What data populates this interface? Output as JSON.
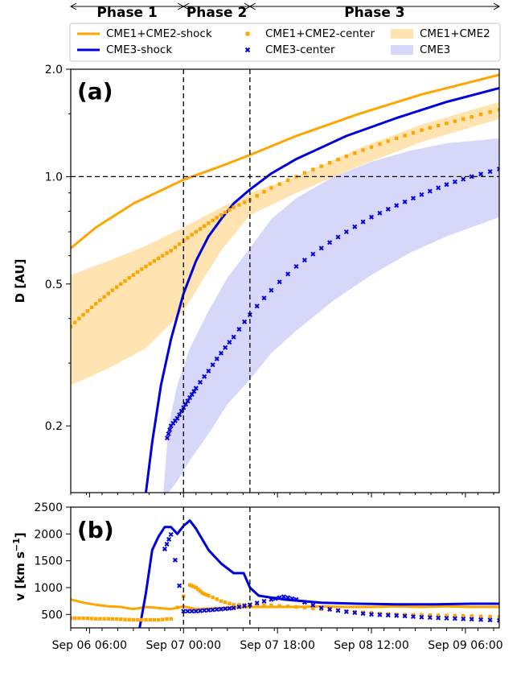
{
  "phases": [
    {
      "label": "Phase 1",
      "start": 0.0,
      "end": 0.9
    },
    {
      "label": "Phase 2",
      "start": 0.9,
      "end": 1.43
    },
    {
      "label": "Phase 3",
      "start": 1.43,
      "end": 3.42
    }
  ],
  "legend": [
    {
      "label": "CME1+CME2-shock",
      "kind": "line",
      "color": "#ffa500"
    },
    {
      "label": "CME3-shock",
      "kind": "line",
      "color": "#0000dd"
    },
    {
      "label": "CME1+CME2-center",
      "kind": "marker",
      "color": "#ffa500"
    },
    {
      "label": "CME3-center",
      "kind": "marker",
      "color": "#0000dd"
    },
    {
      "label": "CME1+CME2",
      "kind": "band",
      "color": "#ffa500"
    },
    {
      "label": "CME3",
      "kind": "band",
      "color": "#7b7bf0"
    }
  ],
  "chart_data": [
    {
      "panel_label": "(a)",
      "type": "line",
      "ylabel": "D [AU]",
      "yscale": "log",
      "ylim": [
        0.13,
        2.0
      ],
      "yticks": [
        "2.0",
        "1.0",
        "0.5",
        "0.2"
      ],
      "ytick_values": [
        2.0,
        1.0,
        0.5,
        0.2
      ],
      "xlim_days": [
        0,
        3.42
      ],
      "vlines_days": [
        0.9,
        1.43
      ],
      "hline": 1.0,
      "series": [
        {
          "name": "CME1+CME2-shock",
          "style": "line",
          "color": "#ffa500",
          "x": [
            0,
            0.2,
            0.5,
            0.9,
            1.2,
            1.43,
            1.8,
            2.3,
            2.8,
            3.42
          ],
          "y": [
            0.63,
            0.72,
            0.84,
            0.98,
            1.07,
            1.15,
            1.3,
            1.5,
            1.7,
            1.93
          ]
        },
        {
          "name": "CME3-shock",
          "style": "line",
          "color": "#0000dd",
          "x": [
            0.6,
            0.65,
            0.72,
            0.8,
            0.9,
            1.0,
            1.1,
            1.2,
            1.3,
            1.43,
            1.6,
            1.8,
            2.2,
            2.6,
            3.0,
            3.42
          ],
          "y": [
            0.13,
            0.18,
            0.26,
            0.35,
            0.47,
            0.58,
            0.68,
            0.76,
            0.84,
            0.92,
            1.02,
            1.12,
            1.3,
            1.46,
            1.62,
            1.77
          ]
        },
        {
          "name": "CME1+CME2-center",
          "style": "marker",
          "color": "#ffa500",
          "x": [
            0,
            0.1,
            0.2,
            0.3,
            0.4,
            0.5,
            0.6,
            0.7,
            0.8,
            0.9,
            1.0,
            1.1,
            1.2,
            1.3,
            1.43,
            1.6,
            1.8,
            2.0,
            2.2,
            2.4,
            2.6,
            2.8,
            3.0,
            3.2,
            3.42
          ],
          "y": [
            0.38,
            0.41,
            0.44,
            0.47,
            0.5,
            0.53,
            0.56,
            0.59,
            0.62,
            0.66,
            0.7,
            0.74,
            0.78,
            0.82,
            0.86,
            0.93,
            1.0,
            1.07,
            1.14,
            1.21,
            1.28,
            1.35,
            1.41,
            1.47,
            1.54
          ]
        },
        {
          "name": "CME3-center",
          "style": "marker",
          "color": "#0000dd",
          "x": [
            0.77,
            0.8,
            0.85,
            0.9,
            0.95,
            1.0,
            1.1,
            1.2,
            1.3,
            1.43,
            1.6,
            1.8,
            2.0,
            2.2,
            2.4,
            2.6,
            2.8,
            3.0,
            3.2,
            3.42
          ],
          "y": [
            0.185,
            0.2,
            0.21,
            0.225,
            0.24,
            0.255,
            0.285,
            0.32,
            0.355,
            0.41,
            0.48,
            0.56,
            0.63,
            0.7,
            0.77,
            0.83,
            0.89,
            0.95,
            1.0,
            1.05
          ]
        }
      ],
      "bands": [
        {
          "name": "CME1+CME2",
          "color": "#ffa500",
          "x": [
            0,
            0.3,
            0.6,
            0.9,
            1.2,
            1.43,
            1.8,
            2.3,
            2.8,
            3.42
          ],
          "low": [
            0.26,
            0.29,
            0.33,
            0.42,
            0.62,
            0.78,
            0.9,
            1.07,
            1.25,
            1.45
          ],
          "high": [
            0.53,
            0.58,
            0.64,
            0.72,
            0.82,
            0.9,
            1.0,
            1.2,
            1.4,
            1.62
          ]
        },
        {
          "name": "CME3",
          "color": "#7b7bf0",
          "x": [
            0.74,
            0.78,
            0.85,
            0.95,
            1.1,
            1.25,
            1.43,
            1.6,
            1.8,
            2.1,
            2.4,
            2.7,
            3.0,
            3.42
          ],
          "low": [
            0.13,
            0.13,
            0.14,
            0.16,
            0.19,
            0.23,
            0.27,
            0.32,
            0.37,
            0.45,
            0.53,
            0.61,
            0.68,
            0.77
          ],
          "high": [
            0.13,
            0.2,
            0.26,
            0.33,
            0.42,
            0.52,
            0.63,
            0.76,
            0.87,
            1.0,
            1.1,
            1.18,
            1.24,
            1.28
          ]
        }
      ]
    },
    {
      "panel_label": "(b)",
      "type": "line",
      "ylabel": "v [km s$^{-1}$]",
      "ylabel_main": "v [km s",
      "ylabel_sup": "−1",
      "ylabel_end": "]",
      "ylim": [
        250,
        2500
      ],
      "yticks": [
        "2500",
        "2000",
        "1500",
        "1000",
        "500"
      ],
      "ytick_values": [
        2500,
        2000,
        1500,
        1000,
        500
      ],
      "xlim_days": [
        0,
        3.42
      ],
      "xtick_labels": [
        "Sep 06 06:00",
        "Sep 07 00:00",
        "Sep 07 18:00",
        "Sep 08 12:00",
        "Sep 09 06:00"
      ],
      "xtick_days": [
        0.15,
        0.9,
        1.65,
        2.4,
        3.15
      ],
      "vlines_days": [
        0.9,
        1.43
      ],
      "series": [
        {
          "name": "CME1+CME2-shock",
          "style": "line",
          "color": "#ffa500",
          "x": [
            0,
            0.1,
            0.2,
            0.3,
            0.4,
            0.5,
            0.6,
            0.7,
            0.8,
            0.9,
            1.0,
            1.2,
            1.43,
            1.6,
            1.8,
            2.0,
            2.2,
            2.4,
            2.6,
            2.8,
            3.0,
            3.2,
            3.42
          ],
          "y": [
            780,
            720,
            680,
            650,
            640,
            600,
            640,
            620,
            600,
            650,
            600,
            620,
            640,
            640,
            640,
            650,
            640,
            640,
            650,
            640,
            650,
            640,
            640
          ]
        },
        {
          "name": "CME3-shock",
          "style": "line",
          "color": "#0000dd",
          "x": [
            0.55,
            0.6,
            0.65,
            0.7,
            0.75,
            0.8,
            0.85,
            0.9,
            0.95,
            1.0,
            1.1,
            1.2,
            1.3,
            1.38,
            1.43,
            1.5,
            1.7,
            2.0,
            2.3,
            2.6,
            2.9,
            3.2,
            3.42
          ],
          "y": [
            250,
            900,
            1700,
            1950,
            2130,
            2130,
            2000,
            2150,
            2250,
            2100,
            1700,
            1450,
            1270,
            1270,
            1000,
            850,
            780,
            720,
            700,
            690,
            690,
            700,
            700
          ]
        },
        {
          "name": "CME1+CME2-center",
          "style": "marker",
          "color": "#ffa500",
          "x": [
            0,
            0.1,
            0.2,
            0.3,
            0.4,
            0.5,
            0.6,
            0.7,
            0.8,
            0.95,
            1.0,
            1.05,
            1.1,
            1.2,
            1.3,
            1.43,
            1.6,
            1.8,
            2.0,
            2.2,
            2.4,
            2.6,
            2.8,
            3.0,
            3.2,
            3.42
          ],
          "y": [
            430,
            430,
            420,
            420,
            410,
            400,
            400,
            400,
            420,
            1050,
            1000,
            900,
            850,
            750,
            680,
            680,
            670,
            640,
            600,
            560,
            530,
            500,
            490,
            480,
            470,
            460
          ]
        },
        {
          "name": "CME3-center",
          "style": "marker",
          "color": "#0000dd",
          "x": [
            0.75,
            0.8,
            0.9,
            1.0,
            1.1,
            1.2,
            1.3,
            1.43,
            1.6,
            1.7,
            1.8,
            2.0,
            2.2,
            2.4,
            2.6,
            2.8,
            3.0,
            3.2,
            3.42
          ],
          "y": [
            1720,
            1990,
            560,
            560,
            580,
            600,
            620,
            680,
            780,
            830,
            780,
            620,
            550,
            500,
            480,
            450,
            430,
            410,
            390
          ]
        }
      ]
    }
  ]
}
